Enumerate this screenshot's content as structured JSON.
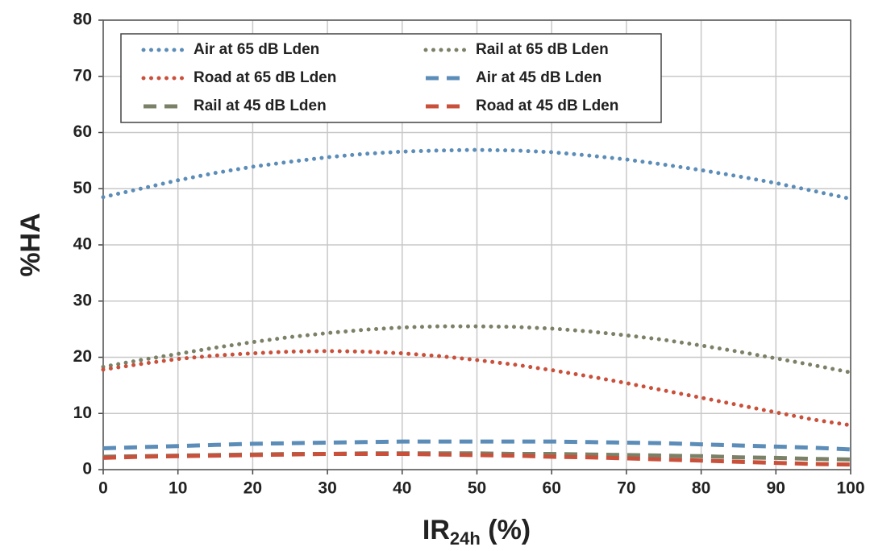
{
  "chart_data": {
    "type": "line",
    "xlabel": {
      "base": "IR",
      "sub": "24h",
      "suffix": " (%)"
    },
    "ylabel": "%HA",
    "x": [
      0,
      5,
      10,
      15,
      20,
      25,
      30,
      35,
      40,
      45,
      50,
      55,
      60,
      65,
      70,
      75,
      80,
      85,
      90,
      95,
      100
    ],
    "series": [
      {
        "name": "Air at 65 dB Lden",
        "color": "#5b8db8",
        "style": "dotted",
        "values": [
          48.5,
          50.0,
          51.5,
          52.8,
          53.9,
          54.8,
          55.6,
          56.2,
          56.6,
          56.8,
          56.9,
          56.8,
          56.5,
          55.9,
          55.2,
          54.3,
          53.3,
          52.2,
          51.0,
          49.6,
          48.2
        ]
      },
      {
        "name": "Rail at 65 dB Lden",
        "color": "#7b8167",
        "style": "dotted",
        "values": [
          18.3,
          19.5,
          20.6,
          21.7,
          22.7,
          23.6,
          24.3,
          24.9,
          25.3,
          25.5,
          25.5,
          25.4,
          25.1,
          24.6,
          23.9,
          23.1,
          22.1,
          21.0,
          19.8,
          18.6,
          17.3
        ]
      },
      {
        "name": "Road at 65 dB Lden",
        "color": "#c9503b",
        "style": "dotted",
        "values": [
          17.8,
          18.8,
          19.7,
          20.3,
          20.7,
          21.0,
          21.1,
          21.0,
          20.7,
          20.2,
          19.5,
          18.7,
          17.7,
          16.6,
          15.4,
          14.1,
          12.8,
          11.5,
          10.2,
          8.9,
          7.9
        ]
      },
      {
        "name": "Air at 45 dB Lden",
        "color": "#5b8db8",
        "style": "dashed",
        "values": [
          3.8,
          4.0,
          4.2,
          4.4,
          4.6,
          4.7,
          4.8,
          4.9,
          5.0,
          5.0,
          5.0,
          5.0,
          5.0,
          4.9,
          4.8,
          4.7,
          4.5,
          4.3,
          4.1,
          3.9,
          3.6
        ]
      },
      {
        "name": "Rail at 45 dB Lden",
        "color": "#7b8167",
        "style": "dashed",
        "values": [
          2.3,
          2.4,
          2.5,
          2.6,
          2.7,
          2.8,
          2.8,
          2.9,
          2.9,
          2.9,
          2.9,
          2.8,
          2.8,
          2.7,
          2.6,
          2.5,
          2.4,
          2.2,
          2.1,
          1.9,
          1.8
        ]
      },
      {
        "name": "Road at 45 dB Lden",
        "color": "#c9503b",
        "style": "dashed",
        "values": [
          2.1,
          2.3,
          2.4,
          2.5,
          2.6,
          2.7,
          2.8,
          2.8,
          2.8,
          2.7,
          2.6,
          2.5,
          2.3,
          2.2,
          2.0,
          1.8,
          1.6,
          1.4,
          1.2,
          1.0,
          0.9
        ]
      }
    ],
    "xlim": [
      0,
      100
    ],
    "xticks": [
      0,
      10,
      20,
      30,
      40,
      50,
      60,
      70,
      80,
      90,
      100
    ],
    "ylim": [
      0,
      80
    ],
    "yticks": [
      0,
      10,
      20,
      30,
      40,
      50,
      60,
      70,
      80
    ],
    "grid": true,
    "legend": "top-left"
  }
}
